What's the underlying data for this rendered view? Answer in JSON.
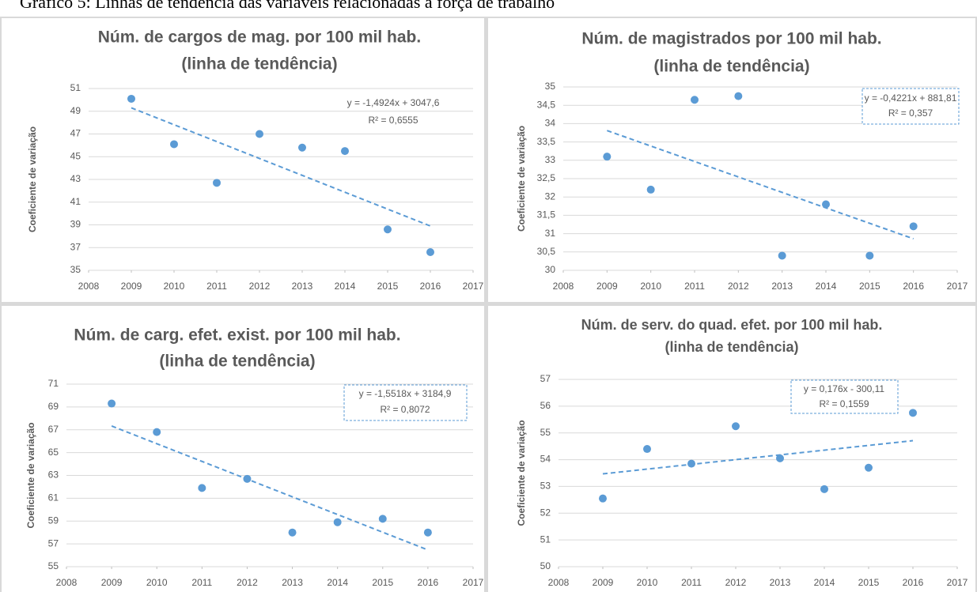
{
  "title": "Gráfico 5: Linhas de tendência das variáveis relacionadas à força de trabalho",
  "chart_data": [
    {
      "type": "scatter",
      "title": "Núm. de cargos de mag. por 100 mil hab.",
      "subtitle": "(linha de tendência)",
      "ylabel": "Coeficiente de variação",
      "x": [
        2009,
        2010,
        2011,
        2012,
        2013,
        2014,
        2015,
        2016
      ],
      "values": [
        50.1,
        46.1,
        42.7,
        47.0,
        45.8,
        45.5,
        38.6,
        36.6
      ],
      "color": "#5b9bd5",
      "trendline": {
        "x": [
          2009,
          2016
        ],
        "values": [
          49.3,
          38.9
        ]
      },
      "annotations": [
        "y = -1,4924x + 3047,6",
        "R² = 0,6555"
      ],
      "xlim": [
        2008,
        2017
      ],
      "xticks": [
        2008,
        2009,
        2010,
        2011,
        2012,
        2013,
        2014,
        2015,
        2016,
        2017
      ],
      "ylim": [
        35,
        51
      ],
      "yticks": [
        35,
        37,
        39,
        41,
        43,
        45,
        47,
        49,
        51
      ],
      "grid": true
    },
    {
      "type": "scatter",
      "title": "Núm. de magistrados por 100 mil hab.",
      "subtitle": "(linha de tendência)",
      "ylabel": "Coeficiente de variação",
      "x": [
        2009,
        2010,
        2011,
        2012,
        2013,
        2014,
        2015,
        2016
      ],
      "values": [
        33.1,
        32.2,
        34.65,
        34.75,
        30.4,
        31.8,
        30.4,
        31.2
      ],
      "color": "#5b9bd5",
      "trendline": {
        "x": [
          2009,
          2016
        ],
        "values": [
          33.81,
          30.86
        ]
      },
      "annotations": [
        "y = -0,4221x + 881,81",
        "R² = 0,357"
      ],
      "xlim": [
        2008,
        2017
      ],
      "xticks": [
        2008,
        2009,
        2010,
        2011,
        2012,
        2013,
        2014,
        2015,
        2016,
        2017
      ],
      "ylim": [
        30,
        35
      ],
      "yticks": [
        30,
        {
          "value": 30.5,
          "label": "30,5"
        },
        31,
        {
          "value": 31.5,
          "label": "31,5"
        },
        32,
        {
          "value": 32.5,
          "label": "32,5"
        },
        33,
        {
          "value": 33.5,
          "label": "33,5"
        },
        34,
        {
          "value": 34.5,
          "label": "34,5"
        },
        35
      ],
      "grid": true
    },
    {
      "type": "scatter",
      "title": "Núm. de carg. efet. exist. por 100 mil hab.",
      "subtitle": "(linha de tendência)",
      "ylabel": "Coeficiente de variação",
      "x": [
        2009,
        2010,
        2011,
        2012,
        2013,
        2014,
        2015,
        2016
      ],
      "values": [
        69.3,
        66.8,
        61.9,
        62.7,
        58.0,
        58.9,
        59.2,
        58.0
      ],
      "color": "#5b9bd5",
      "trendline": {
        "x": [
          2009,
          2016
        ],
        "values": [
          67.33,
          56.47
        ]
      },
      "annotations": [
        "y = -1,5518x + 3184,9",
        "R² = 0,8072"
      ],
      "xlim": [
        2008,
        2017
      ],
      "xticks": [
        2008,
        2009,
        2010,
        2011,
        2012,
        2013,
        2014,
        2015,
        2016,
        2017
      ],
      "ylim": [
        55,
        71
      ],
      "yticks": [
        55,
        57,
        59,
        61,
        63,
        65,
        67,
        69,
        71
      ],
      "grid": true
    },
    {
      "type": "scatter",
      "title": "Núm. de serv. do quad. efet. por 100 mil hab.",
      "subtitle": "(linha de tendência)",
      "ylabel": "Coeficiente de variação",
      "x": [
        2009,
        2010,
        2011,
        2012,
        2013,
        2014,
        2015,
        2016
      ],
      "values": [
        52.55,
        54.4,
        53.85,
        55.25,
        54.05,
        52.9,
        53.7,
        55.75
      ],
      "color": "#5b9bd5",
      "trendline": {
        "x": [
          2009,
          2016
        ],
        "values": [
          53.47,
          54.71
        ]
      },
      "annotations": [
        "y = 0,176x - 300,11",
        "R² = 0,1559"
      ],
      "xlim": [
        2008,
        2017
      ],
      "xticks": [
        2008,
        2009,
        2010,
        2011,
        2012,
        2013,
        2014,
        2015,
        2016,
        2017
      ],
      "ylim": [
        50,
        57
      ],
      "yticks": [
        50,
        51,
        52,
        53,
        54,
        55,
        56,
        57
      ],
      "grid": true
    }
  ]
}
